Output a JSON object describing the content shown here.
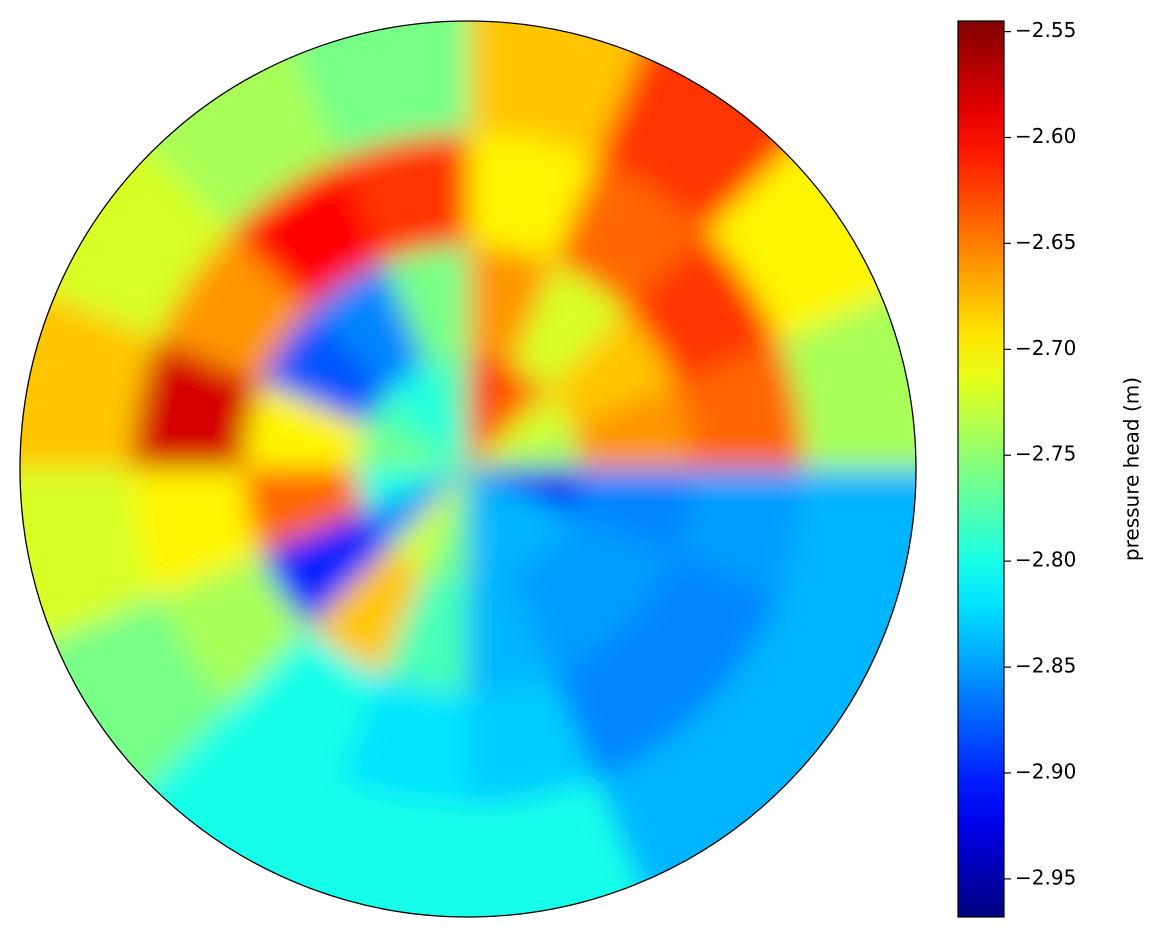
{
  "chart_data": {
    "type": "polar_heatmap",
    "colorbar_label": "pressure head (m)",
    "colormap": "jet",
    "clim": [
      -2.968,
      -2.545
    ],
    "cticks": [
      {
        "value": -2.55,
        "label": "−2.55"
      },
      {
        "value": -2.6,
        "label": "−2.60"
      },
      {
        "value": -2.65,
        "label": "−2.65"
      },
      {
        "value": -2.7,
        "label": "−2.70"
      },
      {
        "value": -2.75,
        "label": "−2.75"
      },
      {
        "value": -2.8,
        "label": "−2.80"
      },
      {
        "value": -2.85,
        "label": "−2.85"
      },
      {
        "value": -2.9,
        "label": "−2.90"
      },
      {
        "value": -2.95,
        "label": "−2.95"
      }
    ],
    "theta_bins": [
      0,
      22.5,
      45,
      67.5,
      90,
      112.5,
      135,
      157.5,
      180,
      202.5,
      225,
      247.5,
      270,
      292.5,
      315,
      337.5,
      360
    ],
    "r_bins": [
      0,
      0.25,
      0.5,
      0.75,
      1
    ],
    "values": [
      [
        -2.74,
        -2.66,
        -2.64,
        -2.74
      ],
      [
        -2.72,
        -2.68,
        -2.62,
        -2.7
      ],
      [
        -2.64,
        -2.72,
        -2.64,
        -2.62
      ],
      [
        -2.62,
        -2.66,
        -2.7,
        -2.68
      ],
      [
        -2.78,
        -2.76,
        -2.62,
        -2.76
      ],
      [
        -2.8,
        -2.86,
        -2.6,
        -2.74
      ],
      [
        -2.78,
        -2.88,
        -2.66,
        -2.72
      ],
      [
        -2.76,
        -2.7,
        -2.58,
        -2.68
      ],
      [
        -2.8,
        -2.64,
        -2.7,
        -2.72
      ],
      [
        -2.86,
        -2.9,
        -2.74,
        -2.76
      ],
      [
        -2.72,
        -2.68,
        -2.8,
        -2.8
      ],
      [
        -2.76,
        -2.78,
        -2.82,
        -2.8
      ],
      [
        -2.84,
        -2.84,
        -2.83,
        -2.8
      ],
      [
        -2.84,
        -2.85,
        -2.86,
        -2.84
      ],
      [
        -2.84,
        -2.85,
        -2.86,
        -2.84
      ],
      [
        -2.92,
        -2.86,
        -2.85,
        -2.84
      ]
    ]
  }
}
